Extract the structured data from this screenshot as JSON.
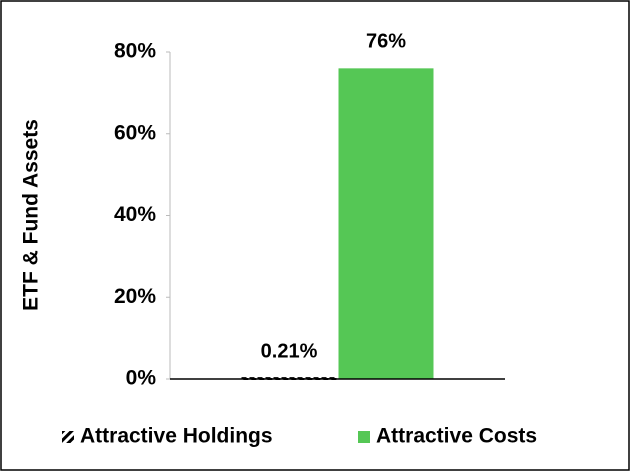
{
  "chart_data": {
    "type": "bar",
    "ylabel": "ETF & Fund Assets",
    "categories": [
      null
    ],
    "series": [
      {
        "name": "Attractive Holdings",
        "color": "#000000",
        "pattern": "hatch",
        "values": [
          0.21
        ],
        "value_labels": [
          "0.21%"
        ]
      },
      {
        "name": "Attractive Costs",
        "color": "#55c755",
        "values": [
          76
        ],
        "value_labels": [
          "76%"
        ]
      }
    ],
    "ylim": [
      0,
      80
    ],
    "yticks": [
      {
        "value": 0,
        "label": "0%"
      },
      {
        "value": 20,
        "label": "20%"
      },
      {
        "value": 40,
        "label": "40%"
      },
      {
        "value": 60,
        "label": "60%"
      },
      {
        "value": 80,
        "label": "80%"
      }
    ],
    "grid": false,
    "legend": "bottom"
  }
}
